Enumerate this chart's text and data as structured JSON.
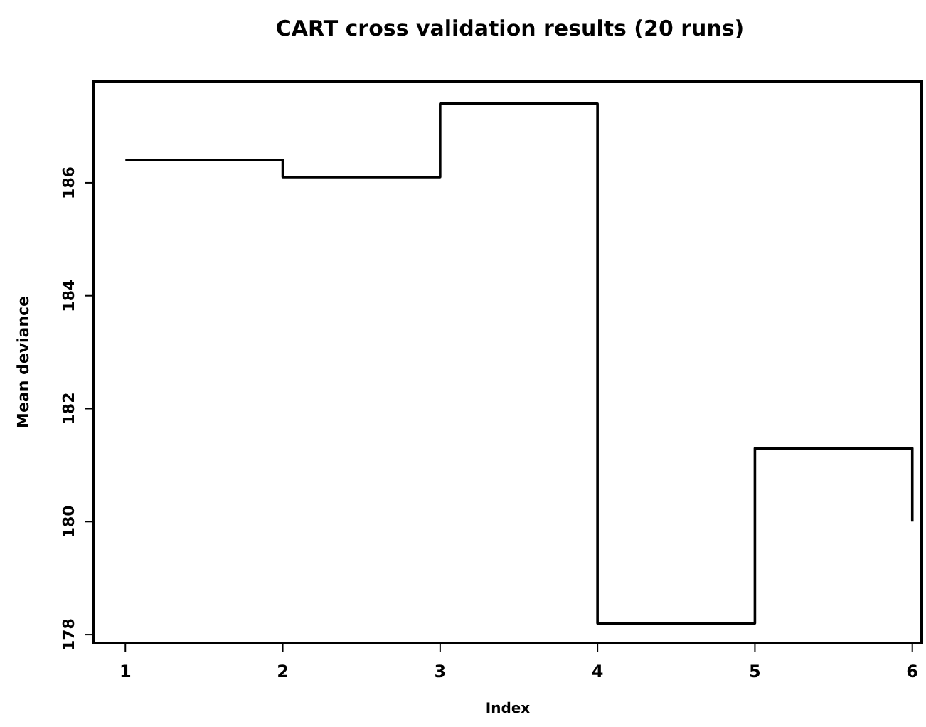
{
  "chart_data": {
    "type": "step",
    "title": "CART cross validation results (20 runs)",
    "xlabel": "Index",
    "ylabel": "Mean deviance",
    "x": [
      1,
      2,
      3,
      4,
      5,
      6
    ],
    "series": [
      {
        "color": "#000000",
        "values": [
          186.4,
          186.1,
          187.4,
          178.2,
          181.3,
          180.0
        ]
      }
    ],
    "xlim": [
      0.8,
      6.06
    ],
    "ylim": [
      177.85,
      187.8
    ],
    "xticks": [
      1,
      2,
      3,
      4,
      5,
      6
    ],
    "yticks": [
      178,
      180,
      182,
      184,
      186
    ],
    "grid": false,
    "marker": "none",
    "line_style": "solid"
  }
}
